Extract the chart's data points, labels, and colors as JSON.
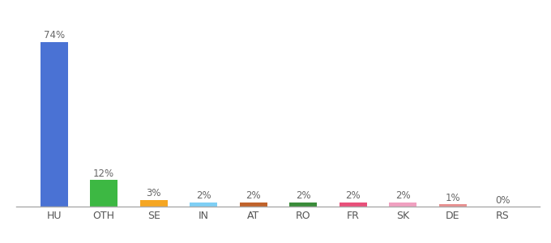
{
  "categories": [
    "HU",
    "OTH",
    "SE",
    "IN",
    "AT",
    "RO",
    "FR",
    "SK",
    "DE",
    "RS"
  ],
  "values": [
    74,
    12,
    3,
    2,
    2,
    2,
    2,
    2,
    1,
    0
  ],
  "colors": [
    "#4a72d4",
    "#3db843",
    "#f5a623",
    "#7ecff5",
    "#c0622b",
    "#3a8c3a",
    "#e8507a",
    "#f0a0c0",
    "#e89090",
    "#e89090"
  ],
  "label_fontsize": 8.5,
  "tick_fontsize": 9,
  "ylim": [
    0,
    84
  ],
  "background_color": "#ffffff",
  "bar_width": 0.55,
  "label_color": "#666666",
  "tick_color": "#555555",
  "spine_color": "#aaaaaa"
}
